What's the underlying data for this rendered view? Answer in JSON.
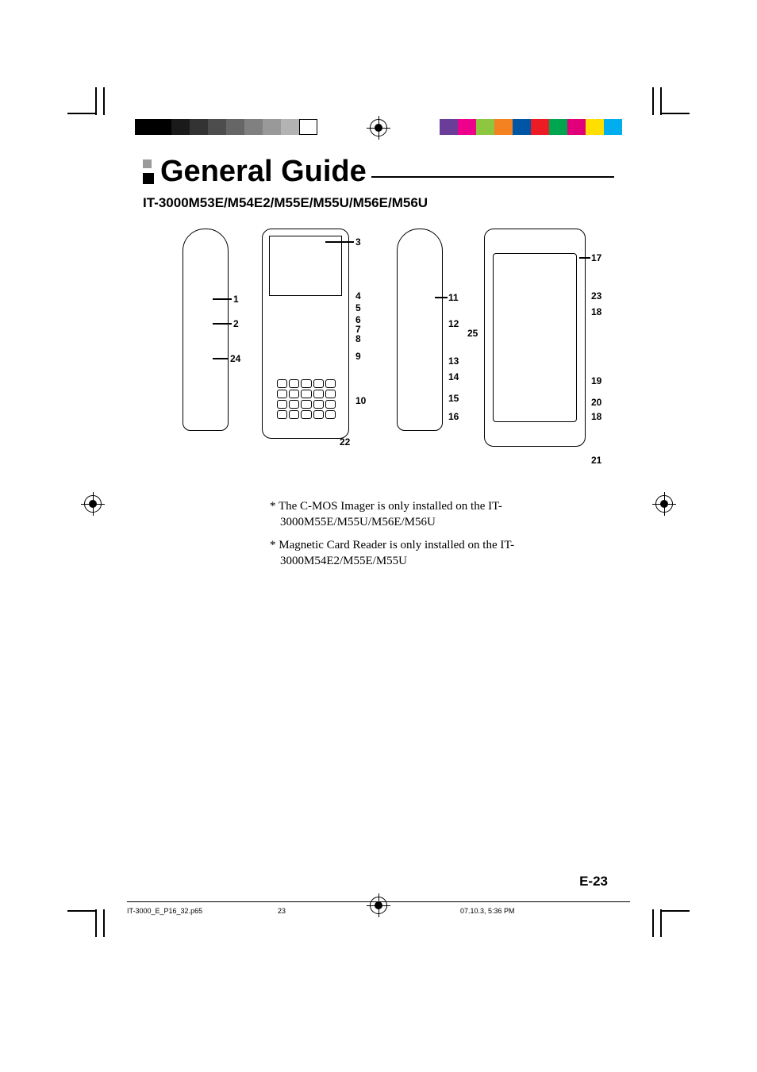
{
  "title": "General Guide",
  "subtitle": "IT-3000M53E/M54E2/M55E/M55U/M56E/M56U",
  "callouts_left_side": {
    "c1": "1",
    "c2": "2",
    "c24": "24"
  },
  "callouts_front": {
    "c3": "3",
    "c4": "4",
    "c5": "5",
    "c6": "6",
    "c7": "7",
    "c8": "8",
    "c9": "9",
    "c10": "10",
    "c22": "22"
  },
  "callouts_right_side": {
    "c11": "11",
    "c12": "12",
    "c13": "13",
    "c14": "14",
    "c15": "15",
    "c16": "16"
  },
  "callouts_back": {
    "c17": "17",
    "c23": "23",
    "c18a": "18",
    "c25": "25",
    "c19": "19",
    "c20": "20",
    "c18b": "18",
    "c21": "21"
  },
  "notes": {
    "n1": "* The C-MOS Imager is only installed on the IT-3000M55E/M55U/M56E/M56U",
    "n2": "* Magnetic Card Reader is only installed on the IT-3000M54E2/M55E/M55U"
  },
  "page_number": "E-23",
  "footer": {
    "filename": "IT-3000_E_P16_32.p65",
    "page": "23",
    "timestamp": "07.10.3, 5:36 PM"
  },
  "colorbar_left": [
    "#000000",
    "#000000",
    "#1a1a1a",
    "#333333",
    "#4d4d4d",
    "#666666",
    "#808080",
    "#999999",
    "#b3b3b3",
    "#ffffff"
  ],
  "colorbar_right": [
    "#00aeef",
    "#ffde00",
    "#e2007a",
    "#00a54f",
    "#ed1c24",
    "#0055a5",
    "#f58220",
    "#8dc63f",
    "#ec008c",
    "#6a3e98"
  ],
  "diagram_stroke": "#000000",
  "background": "#ffffff"
}
